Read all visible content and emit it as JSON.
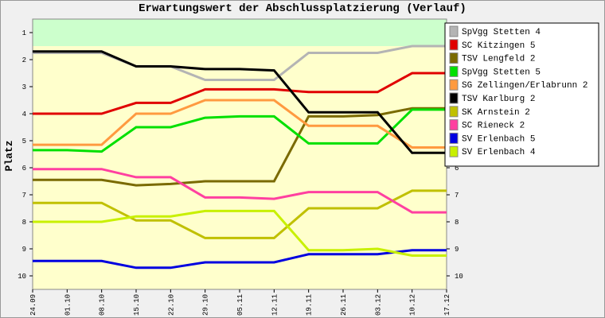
{
  "chart_data": {
    "type": "line",
    "title": "Erwartungswert der Abschlussplatzierung (Verlauf)",
    "y_label": "Platz",
    "categories": [
      "24.09",
      "01.10",
      "08.10",
      "15.10",
      "22.10",
      "29.10",
      "05.11",
      "12.11",
      "19.11",
      "26.11",
      "03.12",
      "10.12",
      "17.12"
    ],
    "ylim": [
      0.5,
      10.5
    ],
    "y_inverted": true,
    "yticks": [
      1,
      2,
      3,
      4,
      5,
      6,
      7,
      8,
      9,
      10
    ],
    "bands": [
      {
        "from": 0.5,
        "to": 1.5,
        "color": "#ccffcc"
      },
      {
        "from": 1.5,
        "to": 10.5,
        "color": "#ffffcc"
      }
    ],
    "series": [
      {
        "name": "SpVgg Stetten 4",
        "color": "#b4b4b4",
        "values": [
          1.75,
          1.75,
          1.75,
          2.25,
          2.25,
          2.75,
          2.75,
          2.75,
          1.75,
          1.75,
          1.75,
          1.5,
          1.5
        ]
      },
      {
        "name": "SC Kitzingen 5",
        "color": "#e00000",
        "values": [
          4.0,
          4.0,
          4.0,
          3.6,
          3.6,
          3.1,
          3.1,
          3.1,
          3.2,
          3.2,
          3.2,
          2.5,
          2.5
        ]
      },
      {
        "name": "TSV Lengfeld 2",
        "color": "#7a6a00",
        "values": [
          6.45,
          6.45,
          6.45,
          6.65,
          6.6,
          6.5,
          6.5,
          6.5,
          4.1,
          4.1,
          4.05,
          3.8,
          3.8
        ]
      },
      {
        "name": "SpVgg Stetten 5",
        "color": "#00e000",
        "values": [
          5.35,
          5.35,
          5.4,
          4.5,
          4.5,
          4.15,
          4.1,
          4.1,
          5.1,
          5.1,
          5.1,
          3.85,
          3.85
        ]
      },
      {
        "name": "SG Zellingen/Erlabrunn 2",
        "color": "#ff9a40",
        "values": [
          5.15,
          5.15,
          5.15,
          4.0,
          4.0,
          3.5,
          3.5,
          3.5,
          4.45,
          4.45,
          4.45,
          5.25,
          5.25
        ]
      },
      {
        "name": "TSV Karlburg 2",
        "color": "#000000",
        "values": [
          1.7,
          1.7,
          1.7,
          2.25,
          2.25,
          2.35,
          2.35,
          2.4,
          3.95,
          3.95,
          3.95,
          5.45,
          5.45
        ]
      },
      {
        "name": "SK Arnstein 2",
        "color": "#c0c000",
        "values": [
          7.3,
          7.3,
          7.3,
          7.95,
          7.95,
          8.6,
          8.6,
          8.6,
          7.5,
          7.5,
          7.5,
          6.85,
          6.85
        ]
      },
      {
        "name": "SC Rieneck 2",
        "color": "#ff40a0",
        "values": [
          6.05,
          6.05,
          6.05,
          6.35,
          6.35,
          7.1,
          7.1,
          7.15,
          6.9,
          6.9,
          6.9,
          7.65,
          7.65
        ]
      },
      {
        "name": "SV Erlenbach 5",
        "color": "#0000e0",
        "values": [
          9.45,
          9.45,
          9.45,
          9.7,
          9.7,
          9.5,
          9.5,
          9.5,
          9.2,
          9.2,
          9.2,
          9.05,
          9.05
        ]
      },
      {
        "name": "SV Erlenbach 4",
        "color": "#c8f000",
        "values": [
          8.0,
          8.0,
          8.0,
          7.8,
          7.8,
          7.6,
          7.6,
          7.6,
          9.05,
          9.05,
          9.0,
          9.25,
          9.25
        ]
      }
    ]
  }
}
